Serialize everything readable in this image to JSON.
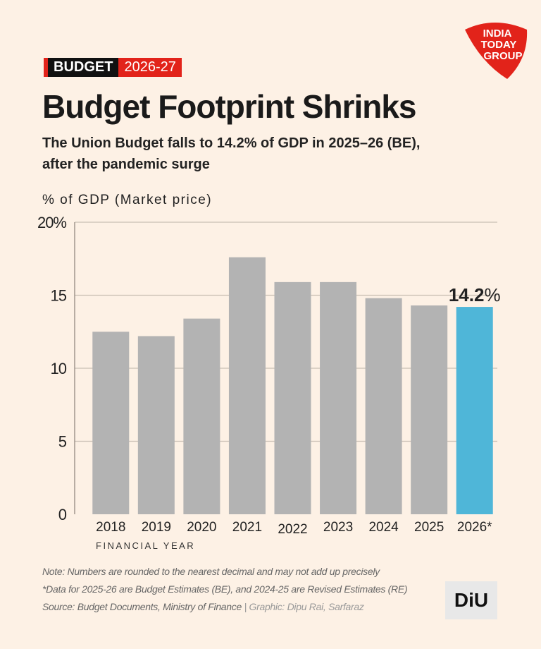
{
  "header": {
    "tag_label": "BUDGET",
    "tag_year": "2026-27",
    "title": "Budget Footprint Shrinks",
    "subtitle_line1": "The Union Budget falls to 14.2% of GDP in 2025–26 (BE),",
    "subtitle_line2": "after the pandemic surge"
  },
  "brand": {
    "logo_line1": "INDIA",
    "logo_line2": "TODAY",
    "logo_line3": "GROUP",
    "diu": "DiU"
  },
  "colors": {
    "background": "#fdf1e5",
    "bar": "#b3b3b3",
    "highlight": "#4fb6d8",
    "accent": "#e2231a"
  },
  "chart_data": {
    "type": "bar",
    "ylabel": "% of GDP (Market price)",
    "xlabel": "FINANCIAL YEAR",
    "categories": [
      "2018",
      "2019",
      "2020",
      "2021",
      "2022",
      "2023",
      "2024",
      "2025",
      "2026*"
    ],
    "values": [
      12.5,
      12.2,
      13.4,
      17.6,
      15.9,
      15.9,
      14.8,
      14.3,
      14.2
    ],
    "highlight_index": 8,
    "highlight_label": "14.2",
    "highlight_unit": "%",
    "ylim": [
      0,
      20
    ],
    "yticks": [
      {
        "v": 0,
        "label": "0"
      },
      {
        "v": 5,
        "label": "5"
      },
      {
        "v": 10,
        "label": "10"
      },
      {
        "v": 15,
        "label": "15"
      },
      {
        "v": 20,
        "label": "20%"
      }
    ],
    "grid": true
  },
  "notes": {
    "note": "Note: Numbers are rounded to the nearest decimal and may not add up precisely",
    "data_note": "*Data for 2025-26 are Budget Estimates (BE), and 2024-25 are Revised Estimates (RE)",
    "source": "Source: Budget Documents, Ministry of Finance",
    "graphic": "Graphic: Dipu Rai, Sarfaraz"
  }
}
